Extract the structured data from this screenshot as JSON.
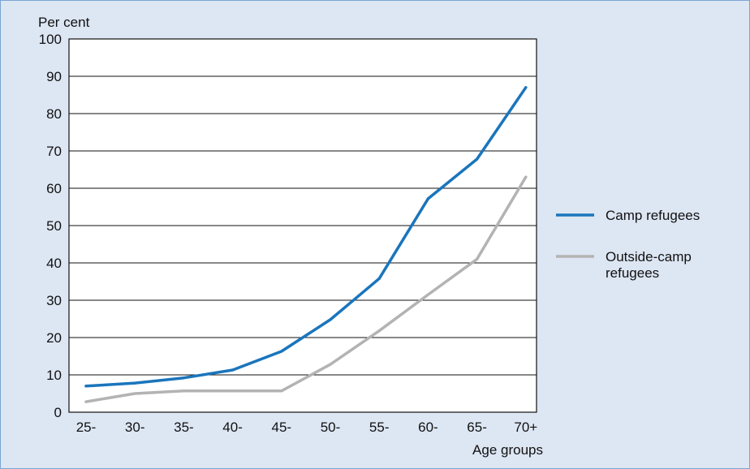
{
  "chart_data": {
    "type": "line",
    "ylabel": "Per cent",
    "xlabel": "Age groups",
    "categories": [
      "25-",
      "30-",
      "35-",
      "40-",
      "45-",
      "50-",
      "55-",
      "60-",
      "65-",
      "70+"
    ],
    "ylim": [
      0,
      100
    ],
    "yticks": [
      0,
      10,
      20,
      30,
      40,
      50,
      60,
      70,
      80,
      90,
      100
    ],
    "grid": true,
    "legend_position": "right",
    "series": [
      {
        "name": "Camp refugees",
        "color": "#1a75bc",
        "values": [
          7,
          7.8,
          9.2,
          11.3,
          16.3,
          24.8,
          35.8,
          57.2,
          67.8,
          87
        ]
      },
      {
        "name": "Outside-camp refugees",
        "name_lines": [
          "Outside-camp",
          "refugees"
        ],
        "color": "#b3b3b3",
        "values": [
          2.8,
          5,
          5.7,
          5.7,
          5.7,
          12.8,
          21.8,
          31.5,
          41,
          63
        ]
      }
    ]
  }
}
